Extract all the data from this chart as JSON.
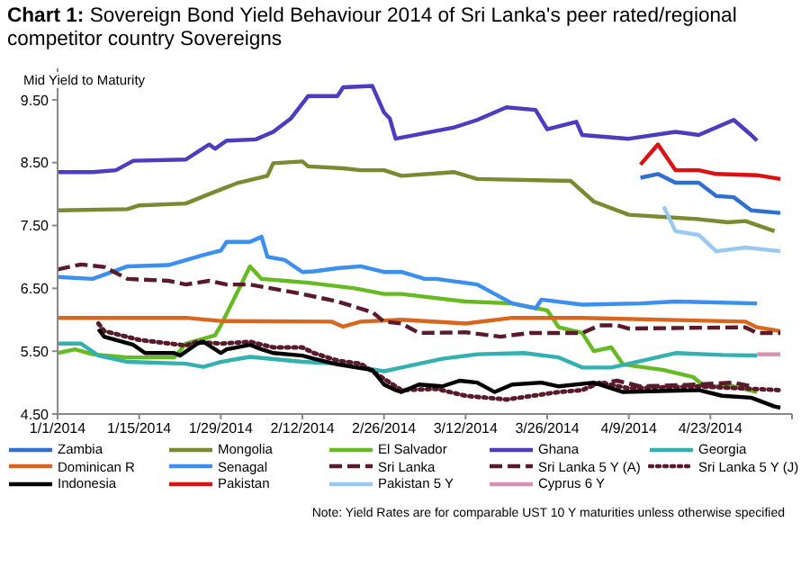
{
  "chart_data": {
    "type": "line",
    "title": "Chart 1: Sovereign Bond Yield Behaviour 2014 of Sri Lanka's peer rated/regional competitor country Sovereigns",
    "ylabel": "Mid Yield to Maturity",
    "annotations": [
      "Note: Yield Rates are for comparable UST 10 Y maturities unless otherwise specified"
    ],
    "legend": "bottom",
    "grid": false,
    "xlim": [
      "2014-01-01",
      "2014-05-07"
    ],
    "xticks": [
      {
        "value": "2014-01-01",
        "label": "1/1/2014"
      },
      {
        "value": "2014-01-15",
        "label": "1/15/2014"
      },
      {
        "value": "2014-01-29",
        "label": "1/29/2014"
      },
      {
        "value": "2014-02-12",
        "label": "2/12/2014"
      },
      {
        "value": "2014-02-26",
        "label": "2/26/2014"
      },
      {
        "value": "2014-03-12",
        "label": "3/12/2014"
      },
      {
        "value": "2014-03-26",
        "label": "3/26/2014"
      },
      {
        "value": "2014-04-09",
        "label": "4/9/2014"
      },
      {
        "value": "2014-04-23",
        "label": "4/23/2014"
      },
      {
        "value": "2014-05-07",
        "label": null
      }
    ],
    "ylim": [
      4.5,
      10.0
    ],
    "yticks": [
      {
        "value": 4.5,
        "label": "4.50"
      },
      {
        "value": 5.5,
        "label": "5.50"
      },
      {
        "value": 6.5,
        "label": "6.50"
      },
      {
        "value": 7.5,
        "label": "7.50"
      },
      {
        "value": 8.5,
        "label": "8.50"
      },
      {
        "value": 9.5,
        "label": "9.50"
      }
    ],
    "series": [
      {
        "name": "Zambia",
        "color": "#2f6fd0",
        "line_style": "solid",
        "x": [
          "2014-04-11",
          "2014-04-14",
          "2014-04-17",
          "2014-04-21",
          "2014-04-24",
          "2014-04-27",
          "2014-04-30",
          "2014-05-05"
        ],
        "values": [
          8.26,
          8.32,
          8.18,
          8.18,
          7.97,
          7.95,
          7.74,
          7.7
        ]
      },
      {
        "name": "Mongolia",
        "color": "#7a8a30",
        "line_style": "solid",
        "x": [
          "2014-01-01",
          "2014-01-13",
          "2014-01-15",
          "2014-01-23",
          "2014-01-27",
          "2014-02-01",
          "2014-02-06",
          "2014-02-07",
          "2014-02-12",
          "2014-02-13",
          "2014-02-19",
          "2014-02-22",
          "2014-02-26",
          "2014-03-01",
          "2014-03-10",
          "2014-03-14",
          "2014-03-30",
          "2014-04-03",
          "2014-04-09",
          "2014-04-21",
          "2014-04-26",
          "2014-04-29",
          "2014-05-04"
        ],
        "values": [
          7.74,
          7.76,
          7.82,
          7.85,
          8.0,
          8.18,
          8.29,
          8.49,
          8.52,
          8.44,
          8.41,
          8.38,
          8.38,
          8.29,
          8.35,
          8.24,
          8.21,
          7.88,
          7.67,
          7.6,
          7.55,
          7.57,
          7.41
        ]
      },
      {
        "name": "El Salvador",
        "color": "#66bb22",
        "line_style": "solid",
        "x": [
          "2014-01-01",
          "2014-01-04",
          "2014-01-07",
          "2014-01-13",
          "2014-01-21",
          "2014-01-23",
          "2014-01-28",
          "2014-01-29",
          "2014-02-01",
          "2014-02-03",
          "2014-02-05",
          "2014-02-09",
          "2014-02-13",
          "2014-02-21",
          "2014-02-26",
          "2014-03-01",
          "2014-03-12",
          "2014-03-20",
          "2014-03-26",
          "2014-03-28",
          "2014-04-01",
          "2014-04-03",
          "2014-04-06",
          "2014-04-08",
          "2014-04-15",
          "2014-04-20",
          "2014-04-22",
          "2014-04-27",
          "2014-05-01"
        ],
        "values": [
          5.47,
          5.53,
          5.45,
          5.4,
          5.4,
          5.62,
          5.75,
          5.91,
          6.47,
          6.85,
          6.65,
          6.62,
          6.59,
          6.5,
          6.41,
          6.41,
          6.29,
          6.26,
          6.15,
          5.88,
          5.79,
          5.5,
          5.56,
          5.29,
          5.2,
          5.09,
          4.94,
          4.94,
          4.85
        ]
      },
      {
        "name": "Ghana",
        "color": "#4b3cc0",
        "line_style": "solid",
        "x": [
          "2014-01-01",
          "2014-01-07",
          "2014-01-11",
          "2014-01-14",
          "2014-01-23",
          "2014-01-25",
          "2014-01-27",
          "2014-01-28",
          "2014-01-30",
          "2014-02-04",
          "2014-02-07",
          "2014-02-10",
          "2014-02-13",
          "2014-02-18",
          "2014-02-19",
          "2014-02-24",
          "2014-02-26",
          "2014-02-27",
          "2014-02-28",
          "2014-03-05",
          "2014-03-10",
          "2014-03-14",
          "2014-03-19",
          "2014-03-24",
          "2014-03-26",
          "2014-03-31",
          "2014-04-01",
          "2014-04-09",
          "2014-04-17",
          "2014-04-21",
          "2014-04-27",
          "2014-04-30",
          "2014-05-01"
        ],
        "values": [
          8.35,
          8.35,
          8.38,
          8.53,
          8.55,
          8.67,
          8.79,
          8.72,
          8.85,
          8.87,
          8.99,
          9.2,
          9.56,
          9.56,
          9.7,
          9.72,
          9.3,
          9.2,
          8.88,
          8.97,
          9.06,
          9.18,
          9.38,
          9.34,
          9.03,
          9.15,
          8.94,
          8.88,
          8.99,
          8.94,
          9.18,
          8.94,
          8.85
        ]
      },
      {
        "name": "Georgia",
        "color": "#33b0b0",
        "line_style": "solid",
        "x": [
          "2014-01-01",
          "2014-01-05",
          "2014-01-08",
          "2014-01-13",
          "2014-01-23",
          "2014-01-26",
          "2014-01-29",
          "2014-02-03",
          "2014-02-12",
          "2014-02-18",
          "2014-02-26",
          "2014-03-01",
          "2014-03-08",
          "2014-03-14",
          "2014-03-22",
          "2014-03-28",
          "2014-04-01",
          "2014-04-06",
          "2014-04-09",
          "2014-04-17",
          "2014-04-25",
          "2014-05-01"
        ],
        "values": [
          5.62,
          5.62,
          5.43,
          5.33,
          5.3,
          5.25,
          5.33,
          5.41,
          5.33,
          5.3,
          5.18,
          5.24,
          5.38,
          5.45,
          5.47,
          5.4,
          5.24,
          5.24,
          5.3,
          5.47,
          5.44,
          5.43
        ]
      },
      {
        "name": "Dominican R",
        "color": "#d9661f",
        "line_style": "solid",
        "x": [
          "2014-01-01",
          "2014-01-23",
          "2014-01-29",
          "2014-02-17",
          "2014-02-19",
          "2014-02-22",
          "2014-03-01",
          "2014-03-12",
          "2014-03-20",
          "2014-04-01",
          "2014-04-29",
          "2014-05-01",
          "2014-05-05"
        ],
        "values": [
          6.03,
          6.03,
          5.98,
          5.97,
          5.89,
          5.97,
          6.0,
          5.94,
          6.03,
          6.03,
          5.97,
          5.88,
          5.82
        ]
      },
      {
        "name": "Senagal",
        "color": "#3b8ff0",
        "line_style": "solid",
        "x": [
          "2014-01-01",
          "2014-01-07",
          "2014-01-13",
          "2014-01-20",
          "2014-01-26",
          "2014-01-29",
          "2014-01-30",
          "2014-02-03",
          "2014-02-05",
          "2014-02-06",
          "2014-02-09",
          "2014-02-12",
          "2014-02-14",
          "2014-02-18",
          "2014-02-22",
          "2014-02-26",
          "2014-03-01",
          "2014-03-05",
          "2014-03-07",
          "2014-03-14",
          "2014-03-20",
          "2014-03-24",
          "2014-03-25",
          "2014-04-01",
          "2014-04-11",
          "2014-04-17",
          "2014-05-01"
        ],
        "values": [
          6.68,
          6.65,
          6.85,
          6.87,
          7.03,
          7.1,
          7.24,
          7.24,
          7.32,
          7.0,
          6.95,
          6.76,
          6.77,
          6.82,
          6.85,
          6.76,
          6.76,
          6.65,
          6.65,
          6.56,
          6.26,
          6.18,
          6.32,
          6.24,
          6.26,
          6.29,
          6.26
        ]
      },
      {
        "name": "Sri Lanka",
        "color": "#5a1a2a",
        "line_style": "dashed",
        "x": [
          "2014-01-01",
          "2014-01-05",
          "2014-01-09",
          "2014-01-13",
          "2014-01-20",
          "2014-01-23",
          "2014-01-27",
          "2014-01-30",
          "2014-02-03",
          "2014-02-12",
          "2014-02-18",
          "2014-02-24",
          "2014-02-26",
          "2014-03-01",
          "2014-03-04",
          "2014-03-12",
          "2014-03-18",
          "2014-03-23",
          "2014-04-01",
          "2014-04-04",
          "2014-04-07",
          "2014-04-09",
          "2014-04-29",
          "2014-05-01",
          "2014-05-05"
        ],
        "values": [
          6.8,
          6.88,
          6.84,
          6.65,
          6.62,
          6.56,
          6.62,
          6.56,
          6.56,
          6.41,
          6.29,
          6.12,
          5.97,
          5.94,
          5.79,
          5.8,
          5.73,
          5.79,
          5.79,
          5.91,
          5.91,
          5.86,
          5.88,
          5.79,
          5.79
        ]
      },
      {
        "name": "Sri Lanka 5 Y (A)",
        "color": "#5a1a2a",
        "line_style": "dashed",
        "x": [
          "2014-04-03",
          "2014-04-07",
          "2014-04-11",
          "2014-04-21",
          "2014-04-27",
          "2014-04-30"
        ],
        "values": [
          4.97,
          5.03,
          4.94,
          4.97,
          5.0,
          4.94
        ]
      },
      {
        "name": "Sri Lanka 5 Y (J)",
        "color": "#5a1a2a",
        "line_style": "dotted",
        "x": [
          "2014-01-08",
          "2014-01-09",
          "2014-01-15",
          "2014-01-23",
          "2014-01-25",
          "2014-01-29",
          "2014-02-03",
          "2014-02-07",
          "2014-02-12",
          "2014-02-14",
          "2014-02-18",
          "2014-02-22",
          "2014-02-26",
          "2014-02-28",
          "2014-03-01",
          "2014-03-07",
          "2014-03-12",
          "2014-03-19",
          "2014-03-28",
          "2014-04-01",
          "2014-04-04",
          "2014-04-09",
          "2014-04-21",
          "2014-05-05"
        ],
        "values": [
          5.94,
          5.82,
          5.68,
          5.59,
          5.65,
          5.62,
          5.65,
          5.56,
          5.56,
          5.47,
          5.35,
          5.3,
          5.06,
          4.94,
          4.88,
          4.9,
          4.79,
          4.73,
          4.85,
          4.88,
          5.0,
          4.91,
          4.94,
          4.88
        ]
      },
      {
        "name": "Indonesia",
        "color": "#000000",
        "line_style": "solid",
        "x": [
          "2014-01-08",
          "2014-01-09",
          "2014-01-14",
          "2014-01-16",
          "2014-01-21",
          "2014-01-22",
          "2014-01-25",
          "2014-01-26",
          "2014-01-29",
          "2014-01-30",
          "2014-02-03",
          "2014-02-05",
          "2014-02-07",
          "2014-02-12",
          "2014-02-14",
          "2014-02-18",
          "2014-02-24",
          "2014-02-26",
          "2014-02-28",
          "2014-03-01",
          "2014-03-04",
          "2014-03-08",
          "2014-03-11",
          "2014-03-14",
          "2014-03-17",
          "2014-03-20",
          "2014-03-25",
          "2014-03-28",
          "2014-04-03",
          "2014-04-08",
          "2014-04-21",
          "2014-04-25",
          "2014-04-30",
          "2014-05-04",
          "2014-05-05"
        ],
        "values": [
          5.85,
          5.73,
          5.6,
          5.47,
          5.47,
          5.43,
          5.62,
          5.65,
          5.47,
          5.53,
          5.6,
          5.53,
          5.47,
          5.43,
          5.38,
          5.29,
          5.2,
          4.97,
          4.88,
          4.85,
          4.97,
          4.94,
          5.03,
          5.0,
          4.85,
          4.97,
          5.0,
          4.94,
          5.0,
          4.85,
          4.88,
          4.79,
          4.76,
          4.62,
          4.6
        ]
      },
      {
        "name": "Pakistan",
        "color": "#dd1111",
        "line_style": "solid",
        "x": [
          "2014-04-11",
          "2014-04-14",
          "2014-04-17",
          "2014-04-21",
          "2014-04-24",
          "2014-05-01",
          "2014-05-05"
        ],
        "values": [
          8.47,
          8.79,
          8.38,
          8.38,
          8.32,
          8.3,
          8.24
        ]
      },
      {
        "name": "Pakistan 5 Y",
        "color": "#99c8f0",
        "line_style": "solid",
        "x": [
          "2014-04-15",
          "2014-04-17",
          "2014-04-21",
          "2014-04-24",
          "2014-04-29",
          "2014-05-05"
        ],
        "values": [
          7.8,
          7.41,
          7.35,
          7.09,
          7.15,
          7.09
        ]
      },
      {
        "name": "Cyprus 6 Y",
        "color": "#d890b0",
        "line_style": "solid",
        "x": [
          "2014-05-01",
          "2014-05-05"
        ],
        "values": [
          5.45,
          5.45
        ]
      }
    ]
  }
}
